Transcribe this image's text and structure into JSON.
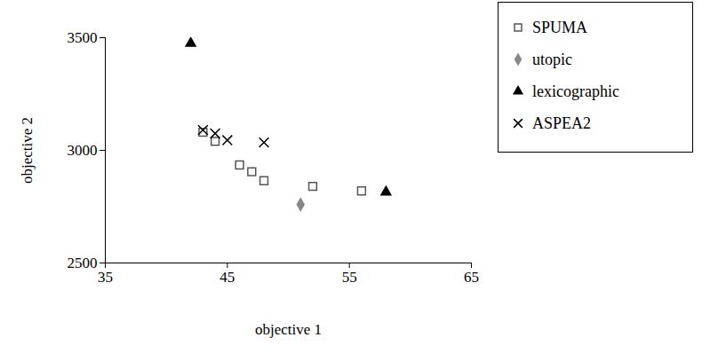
{
  "chart_data": {
    "type": "scatter",
    "x_label": "objective 1",
    "y_label": "objective 2",
    "xlim": [
      35,
      65
    ],
    "xticks": [
      35,
      45,
      55,
      65
    ],
    "ylim": [
      2500,
      3500
    ],
    "yticks": [
      2500,
      3000,
      3500
    ],
    "grid": false,
    "legend": "upper right",
    "series": [
      {
        "name": "SPUMA",
        "color": "#555555",
        "marker": "square",
        "x": [
          43,
          44,
          46,
          47,
          48,
          52,
          56
        ],
        "values": [
          3080,
          3040,
          2935,
          2905,
          2865,
          2840,
          2820
        ]
      },
      {
        "name": "utopic",
        "color": "#888888",
        "marker": "diamond",
        "x": [
          51
        ],
        "values": [
          2760
        ]
      },
      {
        "name": "lexicographic",
        "color": "#000000",
        "marker": "triangle",
        "x": [
          42,
          58
        ],
        "values": [
          3475,
          2815
        ]
      },
      {
        "name": "ASPEA2",
        "color": "#000000",
        "marker": "times",
        "x": [
          43,
          44,
          45,
          48
        ],
        "values": [
          3090,
          3075,
          3045,
          3035
        ]
      }
    ]
  }
}
